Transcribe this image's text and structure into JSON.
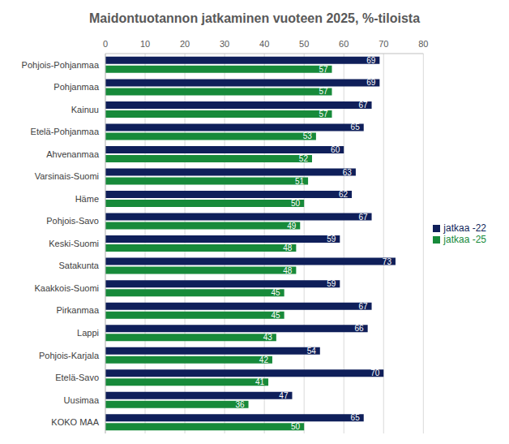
{
  "chart_data": {
    "type": "bar",
    "title": "Maidontuotannon jatkaminen vuoteen 2025, %-tiloista",
    "orientation": "horizontal",
    "categories": [
      "Pohjois-Pohjanmaa",
      "Pohjanmaa",
      "Kainuu",
      "Etelä-Pohjanmaa",
      "Ahvenanmaa",
      "Varsinais-Suomi",
      "Häme",
      "Pohjois-Savo",
      "Keski-Suomi",
      "Satakunta",
      "Kaakkois-Suomi",
      "Pirkanmaa",
      "Lappi",
      "Pohjois-Karjala",
      "Etelä-Savo",
      "Uusimaa",
      "KOKO MAA"
    ],
    "series": [
      {
        "name": "jatkaa -22",
        "color": "#0f1f5a",
        "values": [
          69,
          69,
          67,
          65,
          60,
          63,
          62,
          67,
          59,
          73,
          59,
          67,
          66,
          54,
          70,
          47,
          65
        ]
      },
      {
        "name": "jatkaa -25",
        "color": "#178a3a",
        "values": [
          57,
          57,
          57,
          53,
          52,
          51,
          50,
          49,
          48,
          48,
          45,
          45,
          43,
          42,
          41,
          36,
          50
        ]
      }
    ],
    "xlim": [
      0,
      80
    ],
    "xticks": [
      0,
      10,
      20,
      30,
      40,
      50,
      60,
      70,
      80
    ],
    "grid": true,
    "data_labels": true,
    "legend": "right"
  }
}
